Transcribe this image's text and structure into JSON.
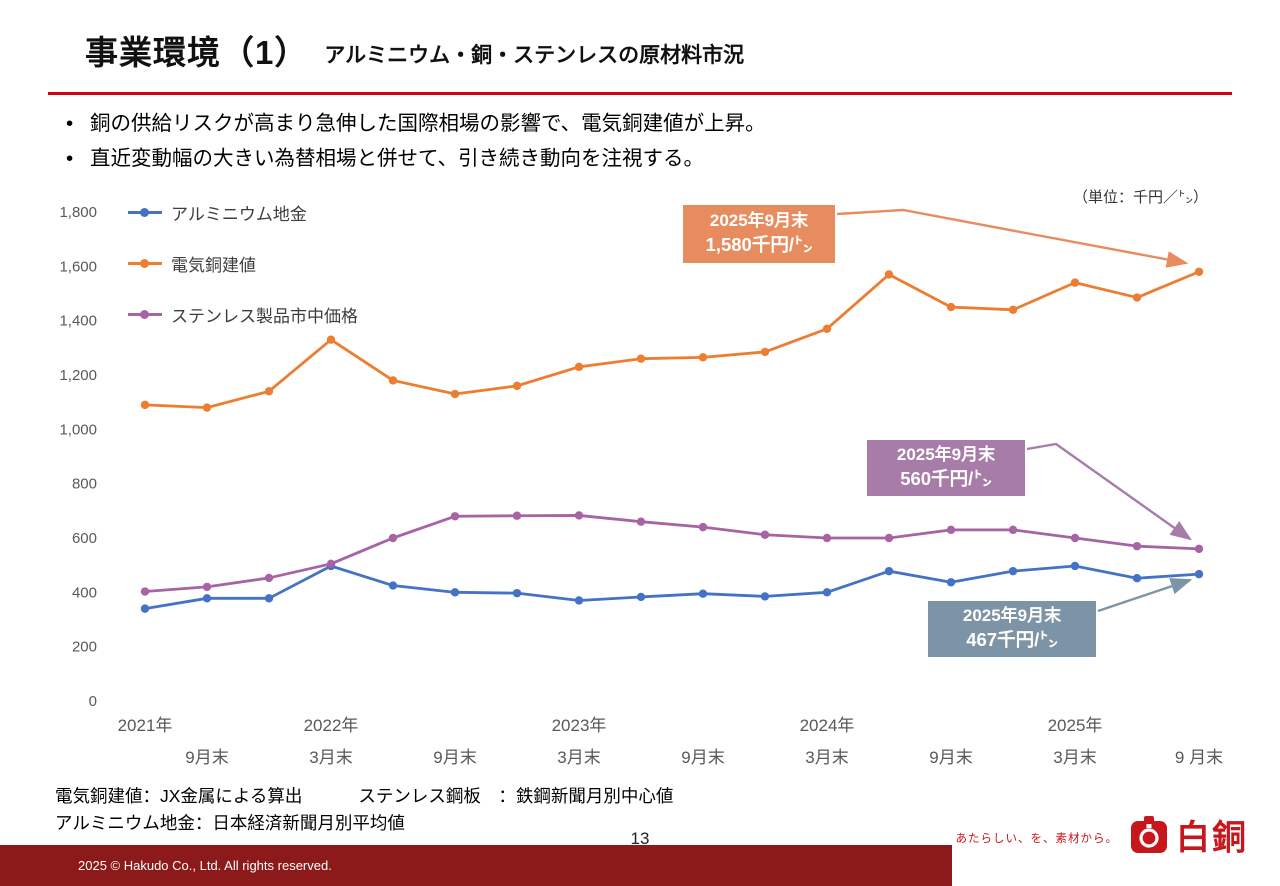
{
  "slide": {
    "title": "事業環境（1）",
    "subtitle": "アルミニウム・銅・ステンレスの原材料市況",
    "bullets": [
      "銅の供給リスクが高まり急伸した国際相場の影響で、電気銅建値が上昇。",
      "直近変動幅の大きい為替相場と併せて、引き続き動向を注視する。"
    ],
    "unit_label": "（単位：千円／㌧）",
    "page_number": "13",
    "copyright": "2025 © Hakudo Co., Ltd. All rights reserved.",
    "logo_tagline": "あたらしい、を、素材から。",
    "logo_text": "白銅",
    "colors": {
      "accent_red": "#D7000F",
      "footer_bar": "#8C1A1A",
      "logo_red": "#C8161D"
    }
  },
  "footnotes": [
    "電気銅建値：JX金属による算出",
    "ステンレス鋼板　：鉄鋼新聞月別中心値",
    "アルミニウム地金：日本経済新聞月別平均値"
  ],
  "chart_data": {
    "type": "line",
    "title": "",
    "xlabel": "",
    "ylabel": "千円/トン",
    "ylim": [
      0,
      1800
    ],
    "ystep": 200,
    "grid": false,
    "legend_position": "top-left",
    "x_ticks": [
      {
        "i": 0,
        "year": "2021年",
        "month": ""
      },
      {
        "i": 1,
        "year": "",
        "month": "9月末"
      },
      {
        "i": 3,
        "year": "2022年",
        "month": "3月末"
      },
      {
        "i": 5,
        "year": "",
        "month": "9月末"
      },
      {
        "i": 7,
        "year": "2023年",
        "month": "3月末"
      },
      {
        "i": 9,
        "year": "",
        "month": "9月末"
      },
      {
        "i": 11,
        "year": "2024年",
        "month": "3月末"
      },
      {
        "i": 13,
        "year": "",
        "month": "9月末"
      },
      {
        "i": 15,
        "year": "2025年",
        "month": "3月末"
      },
      {
        "i": 17,
        "year": "",
        "month": "9 月末"
      }
    ],
    "series": [
      {
        "name": "アルミニウム地金",
        "color": "#4472C4",
        "values": [
          340,
          378,
          378,
          497,
          425,
          400,
          397,
          370,
          383,
          395,
          385,
          400,
          478,
          437,
          478,
          497,
          452,
          467
        ]
      },
      {
        "name": "電気銅建値",
        "color": "#ED7D31",
        "values": [
          1090,
          1080,
          1140,
          1330,
          1180,
          1130,
          1160,
          1230,
          1260,
          1265,
          1285,
          1370,
          1570,
          1450,
          1440,
          1540,
          1485,
          1580
        ]
      },
      {
        "name": "ステンレス製品市中価格",
        "color": "#A763A3",
        "values": [
          403,
          420,
          453,
          505,
          600,
          680,
          682,
          683,
          660,
          640,
          612,
          600,
          600,
          630,
          630,
          600,
          570,
          560
        ]
      }
    ],
    "annotations": [
      {
        "series": "電気銅建値",
        "line1": "2025年9月末",
        "line2": "1,580千円/㌧",
        "color": "#E78C5F"
      },
      {
        "series": "ステンレス製品市中価格",
        "line1": "2025年9月末",
        "line2": "560千円/㌧",
        "color": "#A87CA8"
      },
      {
        "series": "アルミニウム地金",
        "line1": "2025年9月末",
        "line2": "467千円/㌧",
        "color": "#7C94A5"
      }
    ]
  }
}
